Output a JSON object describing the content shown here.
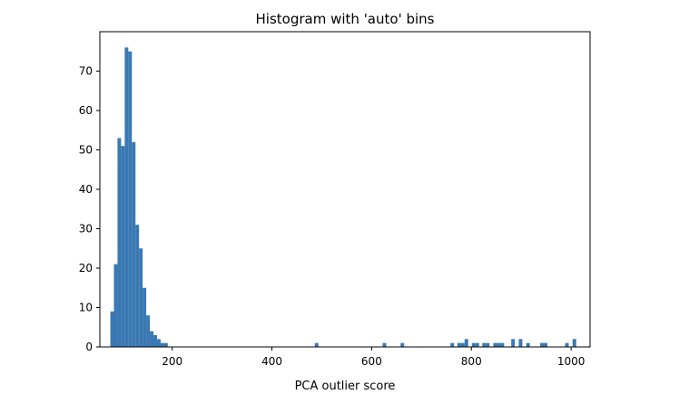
{
  "chart_data": {
    "type": "bar",
    "title": "Histogram with 'auto' bins",
    "xlabel": "PCA outlier score",
    "ylabel": "",
    "xlim": [
      55,
      1038
    ],
    "ylim": [
      0,
      80
    ],
    "x_ticks": [
      200,
      400,
      600,
      800,
      1000
    ],
    "y_ticks": [
      0,
      10,
      20,
      30,
      40,
      50,
      60,
      70
    ],
    "bar_color": "#3a78b3",
    "bin_width": 7.2,
    "grid": false,
    "bins": [
      {
        "x": 76,
        "value": 9
      },
      {
        "x": 83.2,
        "value": 21
      },
      {
        "x": 90.4,
        "value": 53
      },
      {
        "x": 97.6,
        "value": 51
      },
      {
        "x": 104.8,
        "value": 76
      },
      {
        "x": 112,
        "value": 75
      },
      {
        "x": 119.2,
        "value": 52
      },
      {
        "x": 126.4,
        "value": 31
      },
      {
        "x": 133.6,
        "value": 25
      },
      {
        "x": 140.8,
        "value": 15
      },
      {
        "x": 148,
        "value": 8
      },
      {
        "x": 155.2,
        "value": 4
      },
      {
        "x": 162.4,
        "value": 3
      },
      {
        "x": 169.6,
        "value": 2
      },
      {
        "x": 176.8,
        "value": 1
      },
      {
        "x": 184,
        "value": 1
      },
      {
        "x": 486,
        "value": 1
      },
      {
        "x": 622,
        "value": 1
      },
      {
        "x": 658,
        "value": 1
      },
      {
        "x": 758,
        "value": 1
      },
      {
        "x": 772,
        "value": 1
      },
      {
        "x": 779.2,
        "value": 1
      },
      {
        "x": 786.4,
        "value": 2
      },
      {
        "x": 801,
        "value": 1
      },
      {
        "x": 808.2,
        "value": 1
      },
      {
        "x": 822,
        "value": 1
      },
      {
        "x": 829.2,
        "value": 1
      },
      {
        "x": 844,
        "value": 1
      },
      {
        "x": 851.2,
        "value": 1
      },
      {
        "x": 858.4,
        "value": 1
      },
      {
        "x": 880,
        "value": 2
      },
      {
        "x": 895,
        "value": 2
      },
      {
        "x": 910,
        "value": 1
      },
      {
        "x": 938,
        "value": 1
      },
      {
        "x": 945.2,
        "value": 1
      },
      {
        "x": 988,
        "value": 1
      },
      {
        "x": 1003,
        "value": 2
      }
    ]
  }
}
